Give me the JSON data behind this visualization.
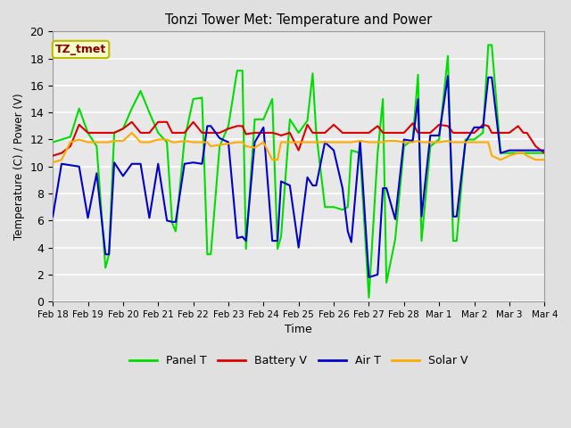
{
  "title": "Tonzi Tower Met: Temperature and Power",
  "xlabel": "Time",
  "ylabel": "Temperature (C) / Power (V)",
  "ylim": [
    0,
    20
  ],
  "xlim": [
    0,
    14
  ],
  "xtick_labels": [
    "Feb 18",
    "Feb 19",
    "Feb 20",
    "Feb 21",
    "Feb 22",
    "Feb 23",
    "Feb 24",
    "Feb 25",
    "Feb 26",
    "Feb 27",
    "Feb 28",
    "Mar 1",
    "Mar 2",
    "Mar 3",
    "Mar 4"
  ],
  "xtick_positions": [
    0,
    1,
    2,
    3,
    4,
    5,
    6,
    7,
    8,
    9,
    10,
    11,
    12,
    13,
    14
  ],
  "ytick_values": [
    0,
    2,
    4,
    6,
    8,
    10,
    12,
    14,
    16,
    18,
    20
  ],
  "annotation_text": "TZ_tmet",
  "annotation_bg": "#ffffcc",
  "annotation_border": "#bbbb00",
  "annotation_text_color": "#880000",
  "fig_bg": "#e0e0e0",
  "plot_bg": "#e8e8e8",
  "grid_color": "#ffffff",
  "colors": {
    "Panel T": "#00dd00",
    "Battery V": "#dd0000",
    "Air T": "#0000cc",
    "Solar V": "#ffaa00"
  },
  "panel_t": {
    "x": [
      0.0,
      0.25,
      0.5,
      0.75,
      1.0,
      1.25,
      1.5,
      1.6,
      1.75,
      2.0,
      2.25,
      2.5,
      2.75,
      3.0,
      3.25,
      3.4,
      3.5,
      3.75,
      4.0,
      4.25,
      4.4,
      4.5,
      4.75,
      5.0,
      5.25,
      5.4,
      5.5,
      5.75,
      6.0,
      6.25,
      6.4,
      6.5,
      6.75,
      7.0,
      7.25,
      7.4,
      7.5,
      7.75,
      8.0,
      8.25,
      8.4,
      8.5,
      8.75,
      9.0,
      9.25,
      9.4,
      9.5,
      9.75,
      10.0,
      10.25,
      10.4,
      10.5,
      10.75,
      11.0,
      11.25,
      11.4,
      11.5,
      11.75,
      12.0,
      12.25,
      12.4,
      12.5,
      12.75,
      13.0,
      13.25,
      13.4,
      13.5,
      13.75,
      14.0
    ],
    "y": [
      11.8,
      12.0,
      12.2,
      14.3,
      12.5,
      11.5,
      2.5,
      3.5,
      12.5,
      12.8,
      14.3,
      15.6,
      14.0,
      12.5,
      11.8,
      5.8,
      5.2,
      12.0,
      15.0,
      15.1,
      3.5,
      3.5,
      11.5,
      13.0,
      17.1,
      17.1,
      3.9,
      13.5,
      13.5,
      15.0,
      3.9,
      4.8,
      13.5,
      12.5,
      13.4,
      16.9,
      12.5,
      7.0,
      7.0,
      6.8,
      7.0,
      11.2,
      11.0,
      0.3,
      11.0,
      15.0,
      1.4,
      4.6,
      11.5,
      12.0,
      16.8,
      4.5,
      11.5,
      12.0,
      18.2,
      4.5,
      4.5,
      12.0,
      12.0,
      12.5,
      19.0,
      19.0,
      11.0,
      11.0,
      11.0,
      11.0,
      11.0,
      11.0,
      11.0
    ]
  },
  "battery_v": {
    "x": [
      0.0,
      0.25,
      0.5,
      0.75,
      1.0,
      1.25,
      1.5,
      1.6,
      1.75,
      2.0,
      2.25,
      2.5,
      2.75,
      3.0,
      3.25,
      3.4,
      3.5,
      3.75,
      4.0,
      4.25,
      4.4,
      4.5,
      4.75,
      5.0,
      5.25,
      5.4,
      5.5,
      5.75,
      6.0,
      6.25,
      6.4,
      6.5,
      6.75,
      7.0,
      7.25,
      7.4,
      7.5,
      7.75,
      8.0,
      8.25,
      8.4,
      8.5,
      8.75,
      9.0,
      9.25,
      9.4,
      9.5,
      9.75,
      10.0,
      10.25,
      10.4,
      10.5,
      10.75,
      11.0,
      11.25,
      11.4,
      11.5,
      11.75,
      12.0,
      12.25,
      12.4,
      12.5,
      12.75,
      13.0,
      13.25,
      13.4,
      13.5,
      13.75,
      14.0
    ],
    "y": [
      10.8,
      11.0,
      11.5,
      13.1,
      12.5,
      12.5,
      12.5,
      12.5,
      12.5,
      12.8,
      13.3,
      12.5,
      12.5,
      13.3,
      13.3,
      12.5,
      12.5,
      12.5,
      13.3,
      12.5,
      12.5,
      12.5,
      12.5,
      12.8,
      13.0,
      13.0,
      12.4,
      12.5,
      12.5,
      12.5,
      12.4,
      12.3,
      12.5,
      11.2,
      13.1,
      12.5,
      12.5,
      12.5,
      13.1,
      12.5,
      12.5,
      12.5,
      12.5,
      12.5,
      13.0,
      12.5,
      12.5,
      12.5,
      12.5,
      13.2,
      12.5,
      12.5,
      12.5,
      13.1,
      13.0,
      12.5,
      12.5,
      12.5,
      12.5,
      13.1,
      13.0,
      12.5,
      12.5,
      12.5,
      13.0,
      12.5,
      12.5,
      11.5,
      11.0
    ]
  },
  "air_t": {
    "x": [
      0.0,
      0.25,
      0.5,
      0.75,
      1.0,
      1.25,
      1.5,
      1.6,
      1.75,
      2.0,
      2.25,
      2.5,
      2.75,
      3.0,
      3.25,
      3.4,
      3.5,
      3.75,
      4.0,
      4.25,
      4.4,
      4.5,
      4.75,
      5.0,
      5.25,
      5.4,
      5.5,
      5.75,
      6.0,
      6.25,
      6.4,
      6.5,
      6.75,
      7.0,
      7.25,
      7.4,
      7.5,
      7.75,
      8.0,
      8.25,
      8.4,
      8.5,
      8.75,
      9.0,
      9.25,
      9.4,
      9.5,
      9.75,
      10.0,
      10.25,
      10.4,
      10.5,
      10.75,
      11.0,
      11.25,
      11.4,
      11.5,
      11.75,
      12.0,
      12.25,
      12.4,
      12.5,
      12.75,
      13.0,
      13.25,
      13.4,
      13.5,
      13.75,
      14.0
    ],
    "y": [
      6.3,
      10.2,
      10.1,
      10.0,
      6.2,
      9.5,
      3.5,
      3.5,
      10.3,
      9.3,
      10.2,
      10.2,
      6.2,
      10.2,
      6.0,
      5.9,
      5.9,
      10.2,
      10.3,
      10.2,
      13.0,
      13.0,
      12.1,
      11.8,
      4.7,
      4.8,
      4.5,
      11.8,
      12.9,
      4.5,
      4.5,
      8.9,
      8.6,
      4.0,
      9.2,
      8.6,
      8.6,
      11.8,
      11.2,
      8.4,
      5.2,
      4.4,
      11.9,
      1.8,
      2.0,
      8.4,
      8.4,
      6.1,
      12.0,
      11.9,
      15.0,
      6.3,
      12.3,
      12.3,
      16.7,
      6.3,
      6.3,
      11.8,
      12.9,
      12.9,
      16.6,
      16.6,
      11.0,
      11.2,
      11.2,
      11.2,
      11.2,
      11.2,
      11.2
    ]
  },
  "solar_v": {
    "x": [
      0.0,
      0.25,
      0.5,
      0.75,
      1.0,
      1.25,
      1.5,
      1.6,
      1.75,
      2.0,
      2.25,
      2.5,
      2.75,
      3.0,
      3.25,
      3.4,
      3.5,
      3.75,
      4.0,
      4.25,
      4.4,
      4.5,
      4.75,
      5.0,
      5.25,
      5.4,
      5.5,
      5.75,
      6.0,
      6.25,
      6.4,
      6.5,
      6.75,
      7.0,
      7.25,
      7.4,
      7.5,
      7.75,
      8.0,
      8.25,
      8.4,
      8.5,
      8.75,
      9.0,
      9.25,
      9.4,
      9.5,
      9.75,
      10.0,
      10.25,
      10.4,
      10.5,
      10.75,
      11.0,
      11.25,
      11.4,
      11.5,
      11.75,
      12.0,
      12.25,
      12.4,
      12.5,
      12.75,
      13.0,
      13.25,
      13.4,
      13.5,
      13.75,
      14.0
    ],
    "y": [
      10.3,
      10.5,
      11.8,
      12.0,
      11.8,
      11.8,
      11.8,
      11.8,
      11.9,
      11.9,
      12.5,
      11.8,
      11.8,
      12.0,
      12.0,
      11.8,
      11.8,
      11.9,
      11.8,
      11.8,
      11.8,
      11.5,
      11.6,
      11.7,
      11.8,
      11.8,
      11.5,
      11.4,
      11.8,
      10.5,
      10.5,
      11.8,
      11.8,
      11.8,
      11.8,
      11.8,
      11.8,
      11.8,
      11.8,
      11.8,
      11.8,
      11.8,
      11.9,
      11.8,
      11.8,
      11.8,
      11.9,
      11.9,
      11.8,
      11.8,
      11.9,
      11.8,
      11.8,
      11.8,
      11.9,
      11.8,
      11.8,
      11.8,
      11.8,
      11.8,
      11.8,
      10.8,
      10.5,
      10.8,
      11.0,
      11.0,
      10.8,
      10.5,
      10.5
    ]
  }
}
